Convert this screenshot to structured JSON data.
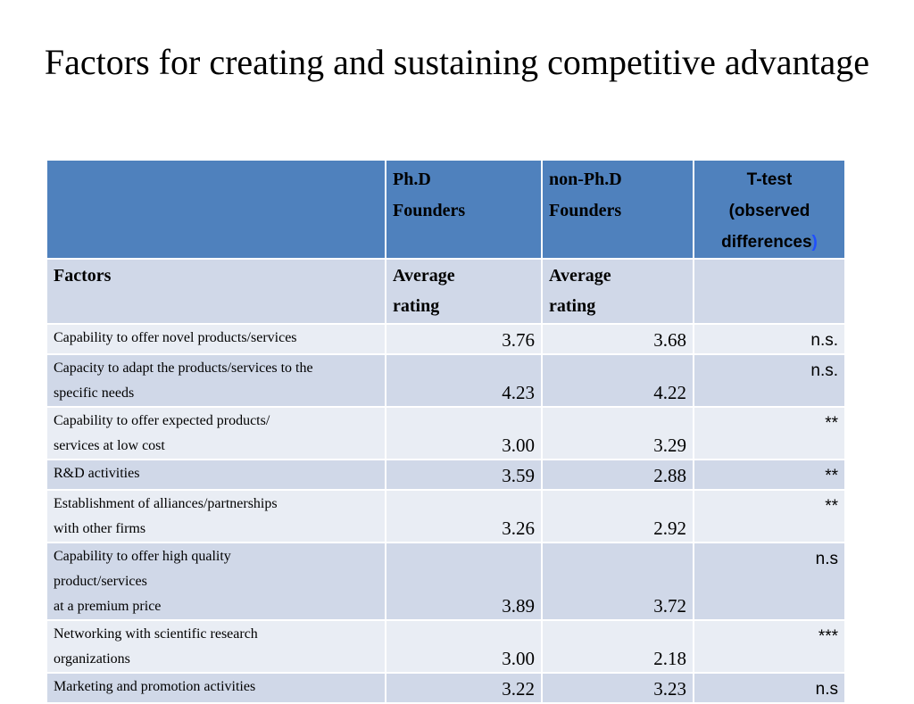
{
  "title": "Factors for creating and sustaining competitive advantage",
  "header": {
    "phd": [
      "Ph.D",
      "Founders"
    ],
    "nonphd": [
      "non-Ph.D",
      "Founders"
    ],
    "ttest": [
      "T-test",
      "(observed",
      "differences",
      ")"
    ]
  },
  "subheader": {
    "factors": "Factors",
    "phd": [
      "Average",
      "rating"
    ],
    "nonphd": [
      "Average",
      "rating"
    ]
  },
  "rows": [
    {
      "factor": [
        "Capability to offer novel products/services"
      ],
      "phd": "3.76",
      "nonphd": "3.68",
      "sig": "n.s."
    },
    {
      "factor": [
        "Capacity to adapt the products/services to the",
        "specific needs"
      ],
      "phd": "4.23",
      "nonphd": "4.22",
      "sig": "n.s."
    },
    {
      "factor": [
        "Capability to offer expected products/",
        "services at low cost"
      ],
      "phd": "3.00",
      "nonphd": "3.29",
      "sig": "**"
    },
    {
      "factor": [
        "R&D activities"
      ],
      "phd": "3.59",
      "nonphd": "2.88",
      "sig": "**"
    },
    {
      "factor": [
        "Establishment of alliances/partnerships",
        "with other firms"
      ],
      "phd": "3.26",
      "nonphd": "2.92",
      "sig": "**"
    },
    {
      "factor": [
        "Capability to offer high quality",
        "product/services",
        "at a premium price"
      ],
      "phd": "3.89",
      "nonphd": "3.72",
      "sig": "n.s"
    },
    {
      "factor": [
        "Networking with scientific research",
        "organizations"
      ],
      "phd": "3.00",
      "nonphd": "2.18",
      "sig": "***"
    },
    {
      "factor": [
        "Marketing and promotion activities"
      ],
      "phd": "3.22",
      "nonphd": "3.23",
      "sig": "n.s"
    }
  ],
  "colors": {
    "header_bg": "#4f81bd",
    "row_dark": "#d0d8e8",
    "row_light": "#e9edf4",
    "paren": "#1f4fff"
  }
}
